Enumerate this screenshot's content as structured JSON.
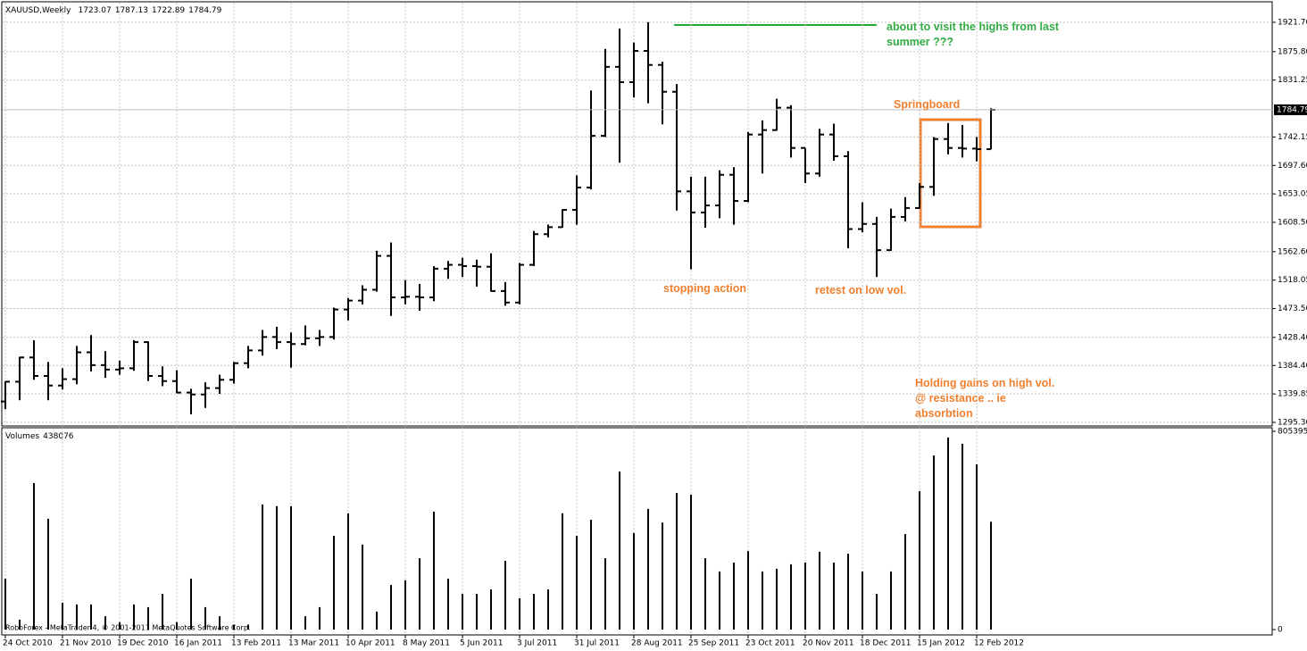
{
  "chart_data": [
    {
      "type": "ohlc",
      "title": "XAUUSD,Weekly",
      "open": [
        1328,
        1359,
        1397,
        1368,
        1353,
        1363,
        1405,
        1385,
        1378,
        1380,
        1421,
        1368,
        1360,
        1342,
        1339,
        1349,
        1362,
        1388,
        1408,
        1429,
        1421,
        1418,
        1427,
        1429,
        1472,
        1486,
        1503,
        1556,
        1491,
        1492,
        1491,
        1536,
        1542,
        1540,
        1539,
        1501,
        1483,
        1542,
        1590,
        1601,
        1628,
        1663,
        1744,
        1852,
        1828,
        1877,
        1855,
        1813,
        1657,
        1624,
        1635,
        1683,
        1642,
        1746,
        1753,
        1788,
        1725,
        1685,
        1746,
        1712,
        1598,
        1606,
        1565,
        1617,
        1631,
        1664,
        1739,
        1725,
        1724,
        1723.07
      ],
      "high": [
        1360,
        1398,
        1424,
        1390,
        1380,
        1415,
        1432,
        1407,
        1392,
        1424,
        1422,
        1383,
        1377,
        1348,
        1358,
        1370,
        1390,
        1415,
        1440,
        1445,
        1436,
        1447,
        1440,
        1475,
        1490,
        1510,
        1564,
        1577,
        1518,
        1512,
        1540,
        1548,
        1553,
        1550,
        1560,
        1515,
        1545,
        1595,
        1605,
        1629,
        1682,
        1815,
        1880,
        1912,
        1890,
        1922,
        1860,
        1825,
        1680,
        1680,
        1690,
        1695,
        1750,
        1768,
        1802,
        1792,
        1725,
        1755,
        1763,
        1720,
        1640,
        1617,
        1630,
        1648,
        1670,
        1742,
        1764,
        1761,
        1742,
        1787.13
      ],
      "low": [
        1316,
        1330,
        1362,
        1330,
        1347,
        1355,
        1375,
        1365,
        1370,
        1376,
        1360,
        1352,
        1341,
        1308,
        1318,
        1340,
        1356,
        1380,
        1400,
        1410,
        1381,
        1416,
        1415,
        1425,
        1455,
        1480,
        1500,
        1462,
        1480,
        1470,
        1485,
        1520,
        1523,
        1508,
        1500,
        1478,
        1480,
        1540,
        1585,
        1600,
        1605,
        1660,
        1742,
        1702,
        1804,
        1795,
        1762,
        1627,
        1535,
        1600,
        1615,
        1605,
        1640,
        1685,
        1752,
        1710,
        1670,
        1680,
        1705,
        1568,
        1593,
        1523,
        1564,
        1610,
        1630,
        1650,
        1715,
        1710,
        1704,
        1722.89
      ],
      "close": [
        1359,
        1397,
        1368,
        1353,
        1363,
        1405,
        1385,
        1378,
        1380,
        1421,
        1368,
        1360,
        1342,
        1339,
        1349,
        1362,
        1388,
        1408,
        1429,
        1421,
        1418,
        1427,
        1429,
        1472,
        1486,
        1503,
        1556,
        1491,
        1492,
        1491,
        1536,
        1542,
        1540,
        1539,
        1501,
        1483,
        1542,
        1590,
        1601,
        1628,
        1663,
        1744,
        1852,
        1828,
        1877,
        1855,
        1813,
        1657,
        1624,
        1635,
        1683,
        1642,
        1746,
        1753,
        1788,
        1725,
        1685,
        1746,
        1712,
        1598,
        1606,
        1565,
        1617,
        1631,
        1664,
        1739,
        1725,
        1724,
        1723.07,
        1784.79
      ],
      "ylim": [
        1295.3,
        1921.7
      ],
      "yticks": [
        {
          "value": 1295.3,
          "label": "1295.30"
        },
        1339.85,
        {
          "value": 1384.4,
          "label": "1384.40"
        },
        {
          "value": 1428.4,
          "label": "1428.40"
        },
        {
          "value": 1473.5,
          "label": "1473.50"
        },
        1518.05,
        {
          "value": 1562.6,
          "label": "1562.60"
        },
        {
          "value": 1608.5,
          "label": "1608.50"
        },
        1653.05,
        {
          "value": 1697.6,
          "label": "1697.60"
        },
        1742.15,
        1831.25,
        {
          "value": 1875.8,
          "label": "1875.80"
        },
        {
          "value": 1921.7,
          "label": "1921.70"
        }
      ],
      "grid": true,
      "annotations": [
        "about to visit the highs from last summer ???",
        "Springboard",
        "stopping action",
        "retest on low vol.",
        "Holding gains on high vol. @ resistance .. ie absorbtion"
      ]
    },
    {
      "type": "bar",
      "title": "Volumes",
      "categories": [
        "24 Oct 2010",
        null,
        null,
        null,
        "21 Nov 2010",
        null,
        null,
        null,
        "19 Dec 2010",
        null,
        null,
        null,
        "16 Jan 2011",
        null,
        null,
        null,
        "13 Feb 2011",
        null,
        null,
        null,
        "13 Mar 2011",
        null,
        null,
        null,
        "10 Apr 2011",
        null,
        null,
        null,
        "8 May 2011",
        null,
        null,
        null,
        "5 Jun 2011",
        null,
        null,
        null,
        "3 Jul 2011",
        null,
        null,
        null,
        "31 Jul 2011",
        null,
        null,
        null,
        "28 Aug 2011",
        null,
        null,
        null,
        "25 Sep 2011",
        null,
        null,
        null,
        "23 Oct 2011",
        null,
        null,
        null,
        "20 Nov 2011",
        null,
        null,
        null,
        "18 Dec 2011",
        null,
        null,
        null,
        "15 Jan 2012",
        null,
        null,
        null,
        "12 Feb 2012",
        null
      ],
      "values": [
        207000,
        40000,
        595000,
        450000,
        109000,
        102000,
        102000,
        54000,
        30000,
        102000,
        91000,
        145000,
        30000,
        207000,
        91000,
        54000,
        20000,
        20000,
        508000,
        501000,
        501000,
        54000,
        91000,
        381000,
        472000,
        345000,
        73000,
        181000,
        200000,
        290000,
        479000,
        207000,
        145000,
        145000,
        163000,
        279000,
        127000,
        145000,
        163000,
        472000,
        381000,
        446000,
        290000,
        642000,
        392000,
        490000,
        435000,
        555000,
        548000,
        290000,
        236000,
        272000,
        319000,
        236000,
        247000,
        265000,
        272000,
        316000,
        272000,
        308000,
        236000,
        145000,
        236000,
        388000,
        562000,
        707000,
        780000,
        755000,
        671000,
        438076
      ],
      "ylim": [
        0,
        805395
      ],
      "yticks": [
        0,
        805395
      ],
      "grid": true
    },
    {
      "copyright": "RoboForex - MetaTrader 4, © 2001-2011 MetaQuotes Software Corp."
    }
  ]
}
